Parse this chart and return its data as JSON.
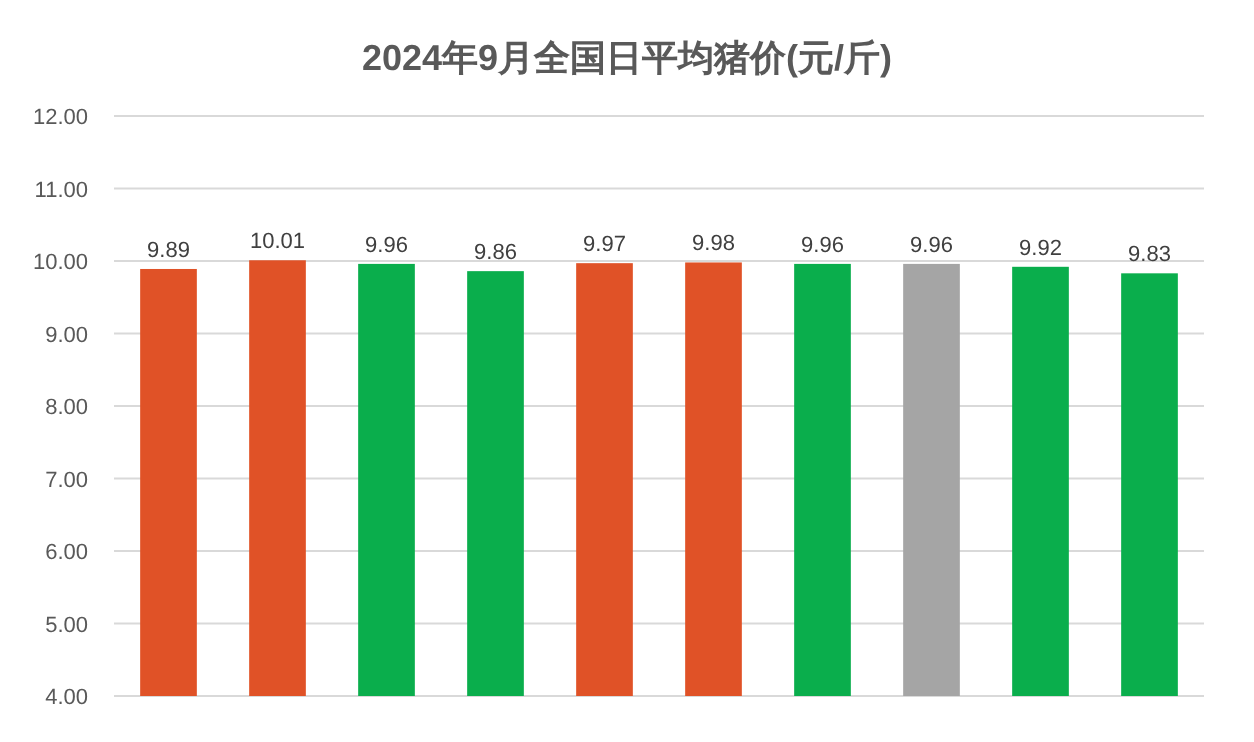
{
  "chart_data": {
    "type": "bar",
    "title": "2024年9月全国日平均猪价(元/斤)",
    "categories": [
      null,
      null,
      null,
      null,
      null,
      null,
      null,
      null,
      null,
      null
    ],
    "values": [
      9.89,
      10.01,
      9.96,
      9.86,
      9.97,
      9.98,
      9.96,
      9.96,
      9.92,
      9.83
    ],
    "colors": [
      "#e05227",
      "#e05227",
      "#0aae4c",
      "#0aae4c",
      "#e05227",
      "#e05227",
      "#0aae4c",
      "#a5a5a5",
      "#0aae4c",
      "#0aae4c"
    ],
    "ylim": [
      4,
      12
    ],
    "yticks": [
      {
        "value": 4,
        "label": "4.00"
      },
      {
        "value": 5,
        "label": "5.00"
      },
      {
        "value": 6,
        "label": "6.00"
      },
      {
        "value": 7,
        "label": "7.00"
      },
      {
        "value": 8,
        "label": "8.00"
      },
      {
        "value": 9,
        "label": "9.00"
      },
      {
        "value": 10,
        "label": "10.00"
      },
      {
        "value": 11,
        "label": "11.00"
      },
      {
        "value": 12,
        "label": "12.00"
      }
    ],
    "grid": "y",
    "data_labels": true
  }
}
